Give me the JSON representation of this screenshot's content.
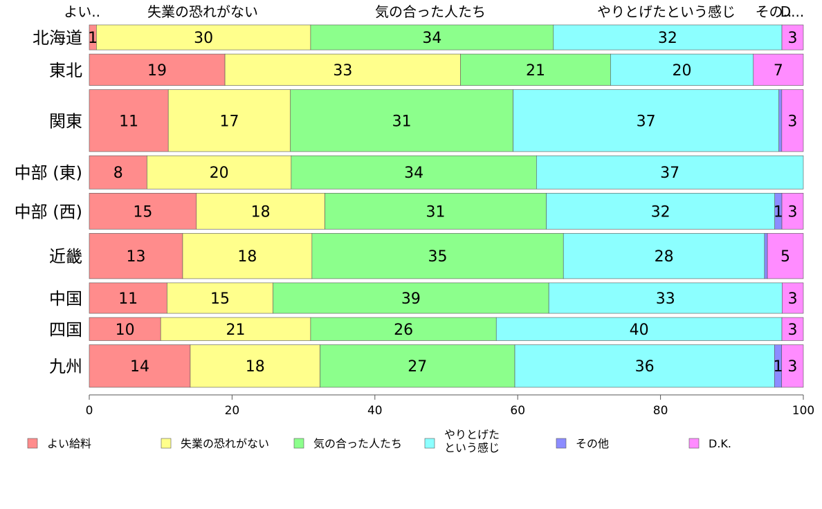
{
  "chart_data": {
    "type": "bar",
    "orientation": "horizontal",
    "stacked": true,
    "xlim": [
      0,
      100
    ],
    "x_ticks": [
      0,
      20,
      40,
      60,
      80,
      100
    ],
    "categories": [
      "北海道",
      "東北",
      "関東",
      "中部 (東)",
      "中部 (西)",
      "近畿",
      "中国",
      "四国",
      "九州"
    ],
    "category_weights": [
      27,
      34,
      67,
      36,
      39,
      49,
      33,
      25,
      46
    ],
    "top_labels": [
      "よい..",
      "失業の恐れがない",
      "気の合った人たち",
      "やりとげたという感じ",
      "その..",
      "D..."
    ],
    "series": [
      {
        "name": "よい給料",
        "color": "#ff8c8c",
        "values": [
          1,
          19,
          11,
          8,
          15,
          13,
          11,
          10,
          14
        ]
      },
      {
        "name": "失業の恐れがない",
        "color": "#ffff8c",
        "values": [
          30,
          33,
          17,
          20,
          18,
          18,
          15,
          21,
          18
        ]
      },
      {
        "name": "気の合った人たち",
        "color": "#8cff8c",
        "values": [
          34,
          21,
          31,
          34,
          31,
          35,
          39,
          26,
          27
        ]
      },
      {
        "name": "やりとげた\nという感じ",
        "color": "#8cffff",
        "values": [
          32,
          20,
          37,
          37,
          32,
          28,
          33,
          40,
          36
        ]
      },
      {
        "name": "その他",
        "color": "#8c8cff",
        "values": [
          0,
          0,
          0.4,
          0,
          1,
          0.4,
          0,
          0,
          1
        ]
      },
      {
        "name": "D.K.",
        "color": "#ff8cff",
        "values": [
          3,
          7,
          3,
          0,
          3,
          5,
          3,
          3,
          3
        ]
      }
    ],
    "value_labels": [
      [
        "1",
        "30",
        "34",
        "32",
        "",
        "3"
      ],
      [
        "19",
        "33",
        "21",
        "20",
        "",
        "7"
      ],
      [
        "11",
        "17",
        "31",
        "37",
        "",
        "3"
      ],
      [
        "8",
        "20",
        "34",
        "37",
        "",
        ""
      ],
      [
        "15",
        "18",
        "31",
        "32",
        "1",
        "3"
      ],
      [
        "13",
        "18",
        "35",
        "28",
        "",
        "5"
      ],
      [
        "11",
        "15",
        "39",
        "33",
        "",
        "3"
      ],
      [
        "10",
        "21",
        "26",
        "40",
        "",
        "3"
      ],
      [
        "14",
        "18",
        "27",
        "36",
        "1",
        "3"
      ]
    ],
    "legend_position": "bottom"
  }
}
